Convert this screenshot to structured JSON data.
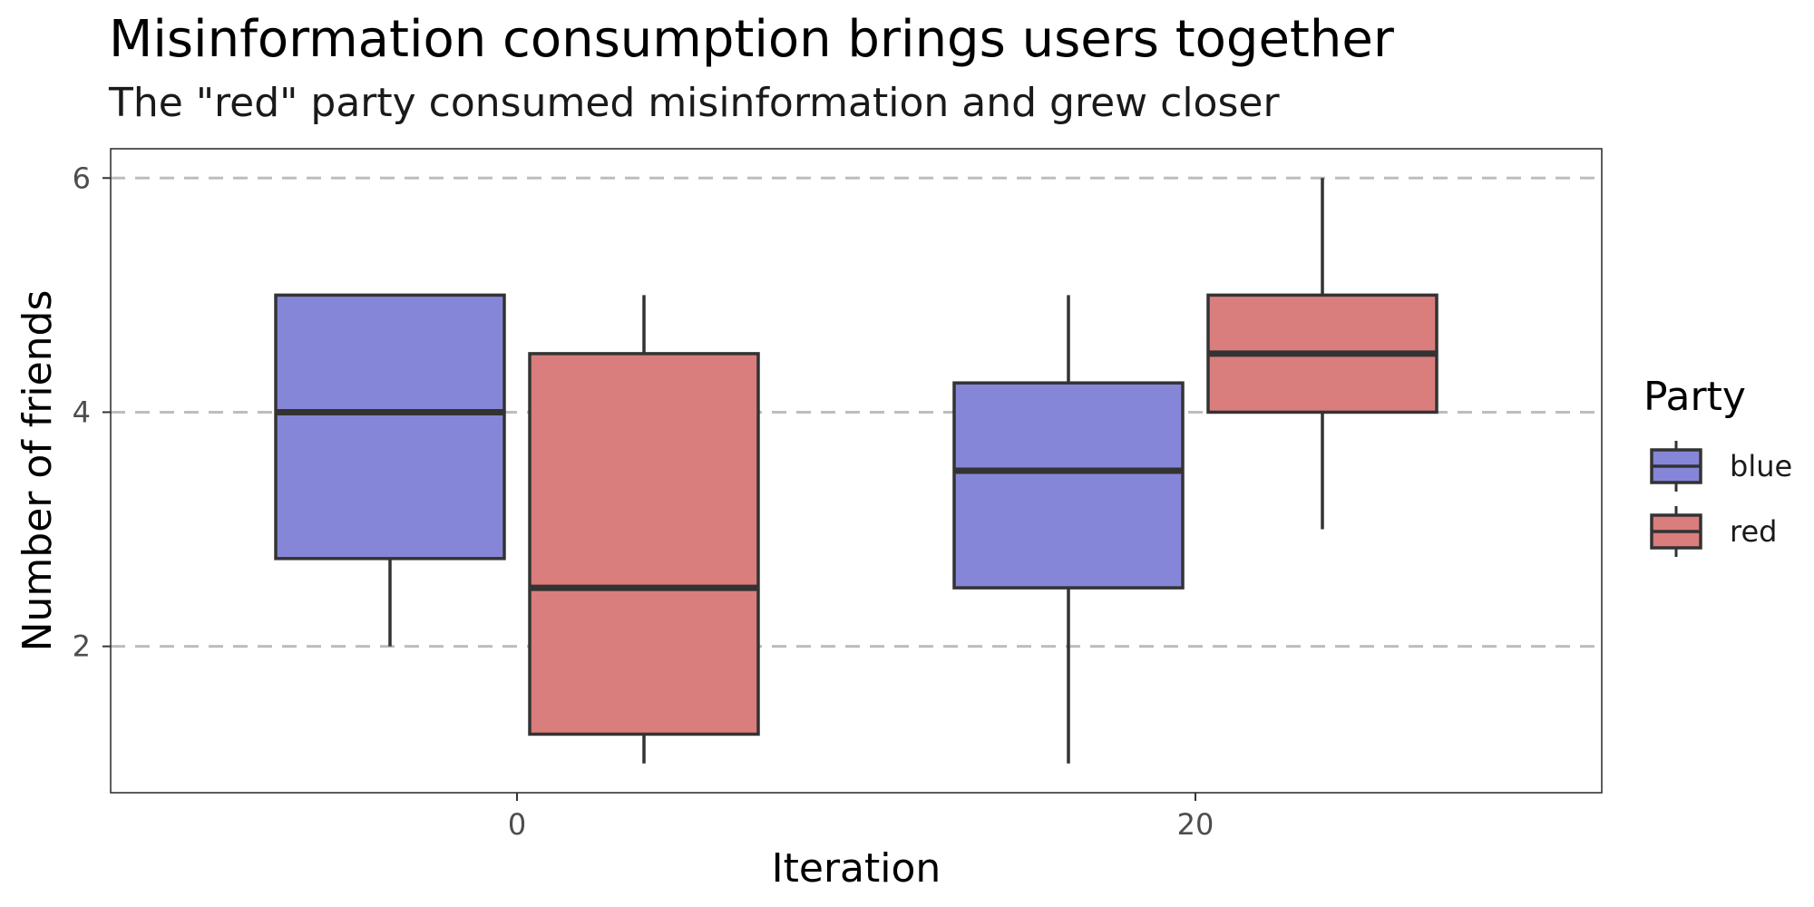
{
  "chart_data": {
    "type": "boxplot",
    "title": "Misinformation consumption brings users together",
    "subtitle": "The \"red\" party consumed misinformation and grew closer",
    "xlabel": "Iteration",
    "ylabel": "Number of friends",
    "x_ticks": [
      "0",
      "20"
    ],
    "y_ticks": [
      2,
      4,
      6
    ],
    "ylim": [
      0.75,
      6.25
    ],
    "grid": "horizontal dashed at major y ticks",
    "legend": {
      "title": "Party",
      "placement": "right",
      "entries": [
        {
          "label": "blue",
          "color": "#8686d8"
        },
        {
          "label": "red",
          "color": "#da7d7d"
        }
      ]
    },
    "categories": [
      "0",
      "20"
    ],
    "series": [
      {
        "name": "blue",
        "color": "#8686d8",
        "boxes": [
          {
            "x": "0",
            "min": 2,
            "q1": 2.75,
            "median": 4,
            "q3": 5,
            "max": 5
          },
          {
            "x": "20",
            "min": 1,
            "q1": 2.5,
            "median": 3.5,
            "q3": 4.25,
            "max": 5
          }
        ]
      },
      {
        "name": "red",
        "color": "#da7d7d",
        "boxes": [
          {
            "x": "0",
            "min": 1,
            "q1": 1.25,
            "median": 2.5,
            "q3": 4.5,
            "max": 5
          },
          {
            "x": "20",
            "min": 3,
            "q1": 4,
            "median": 4.5,
            "q3": 5,
            "max": 6
          }
        ]
      }
    ]
  }
}
